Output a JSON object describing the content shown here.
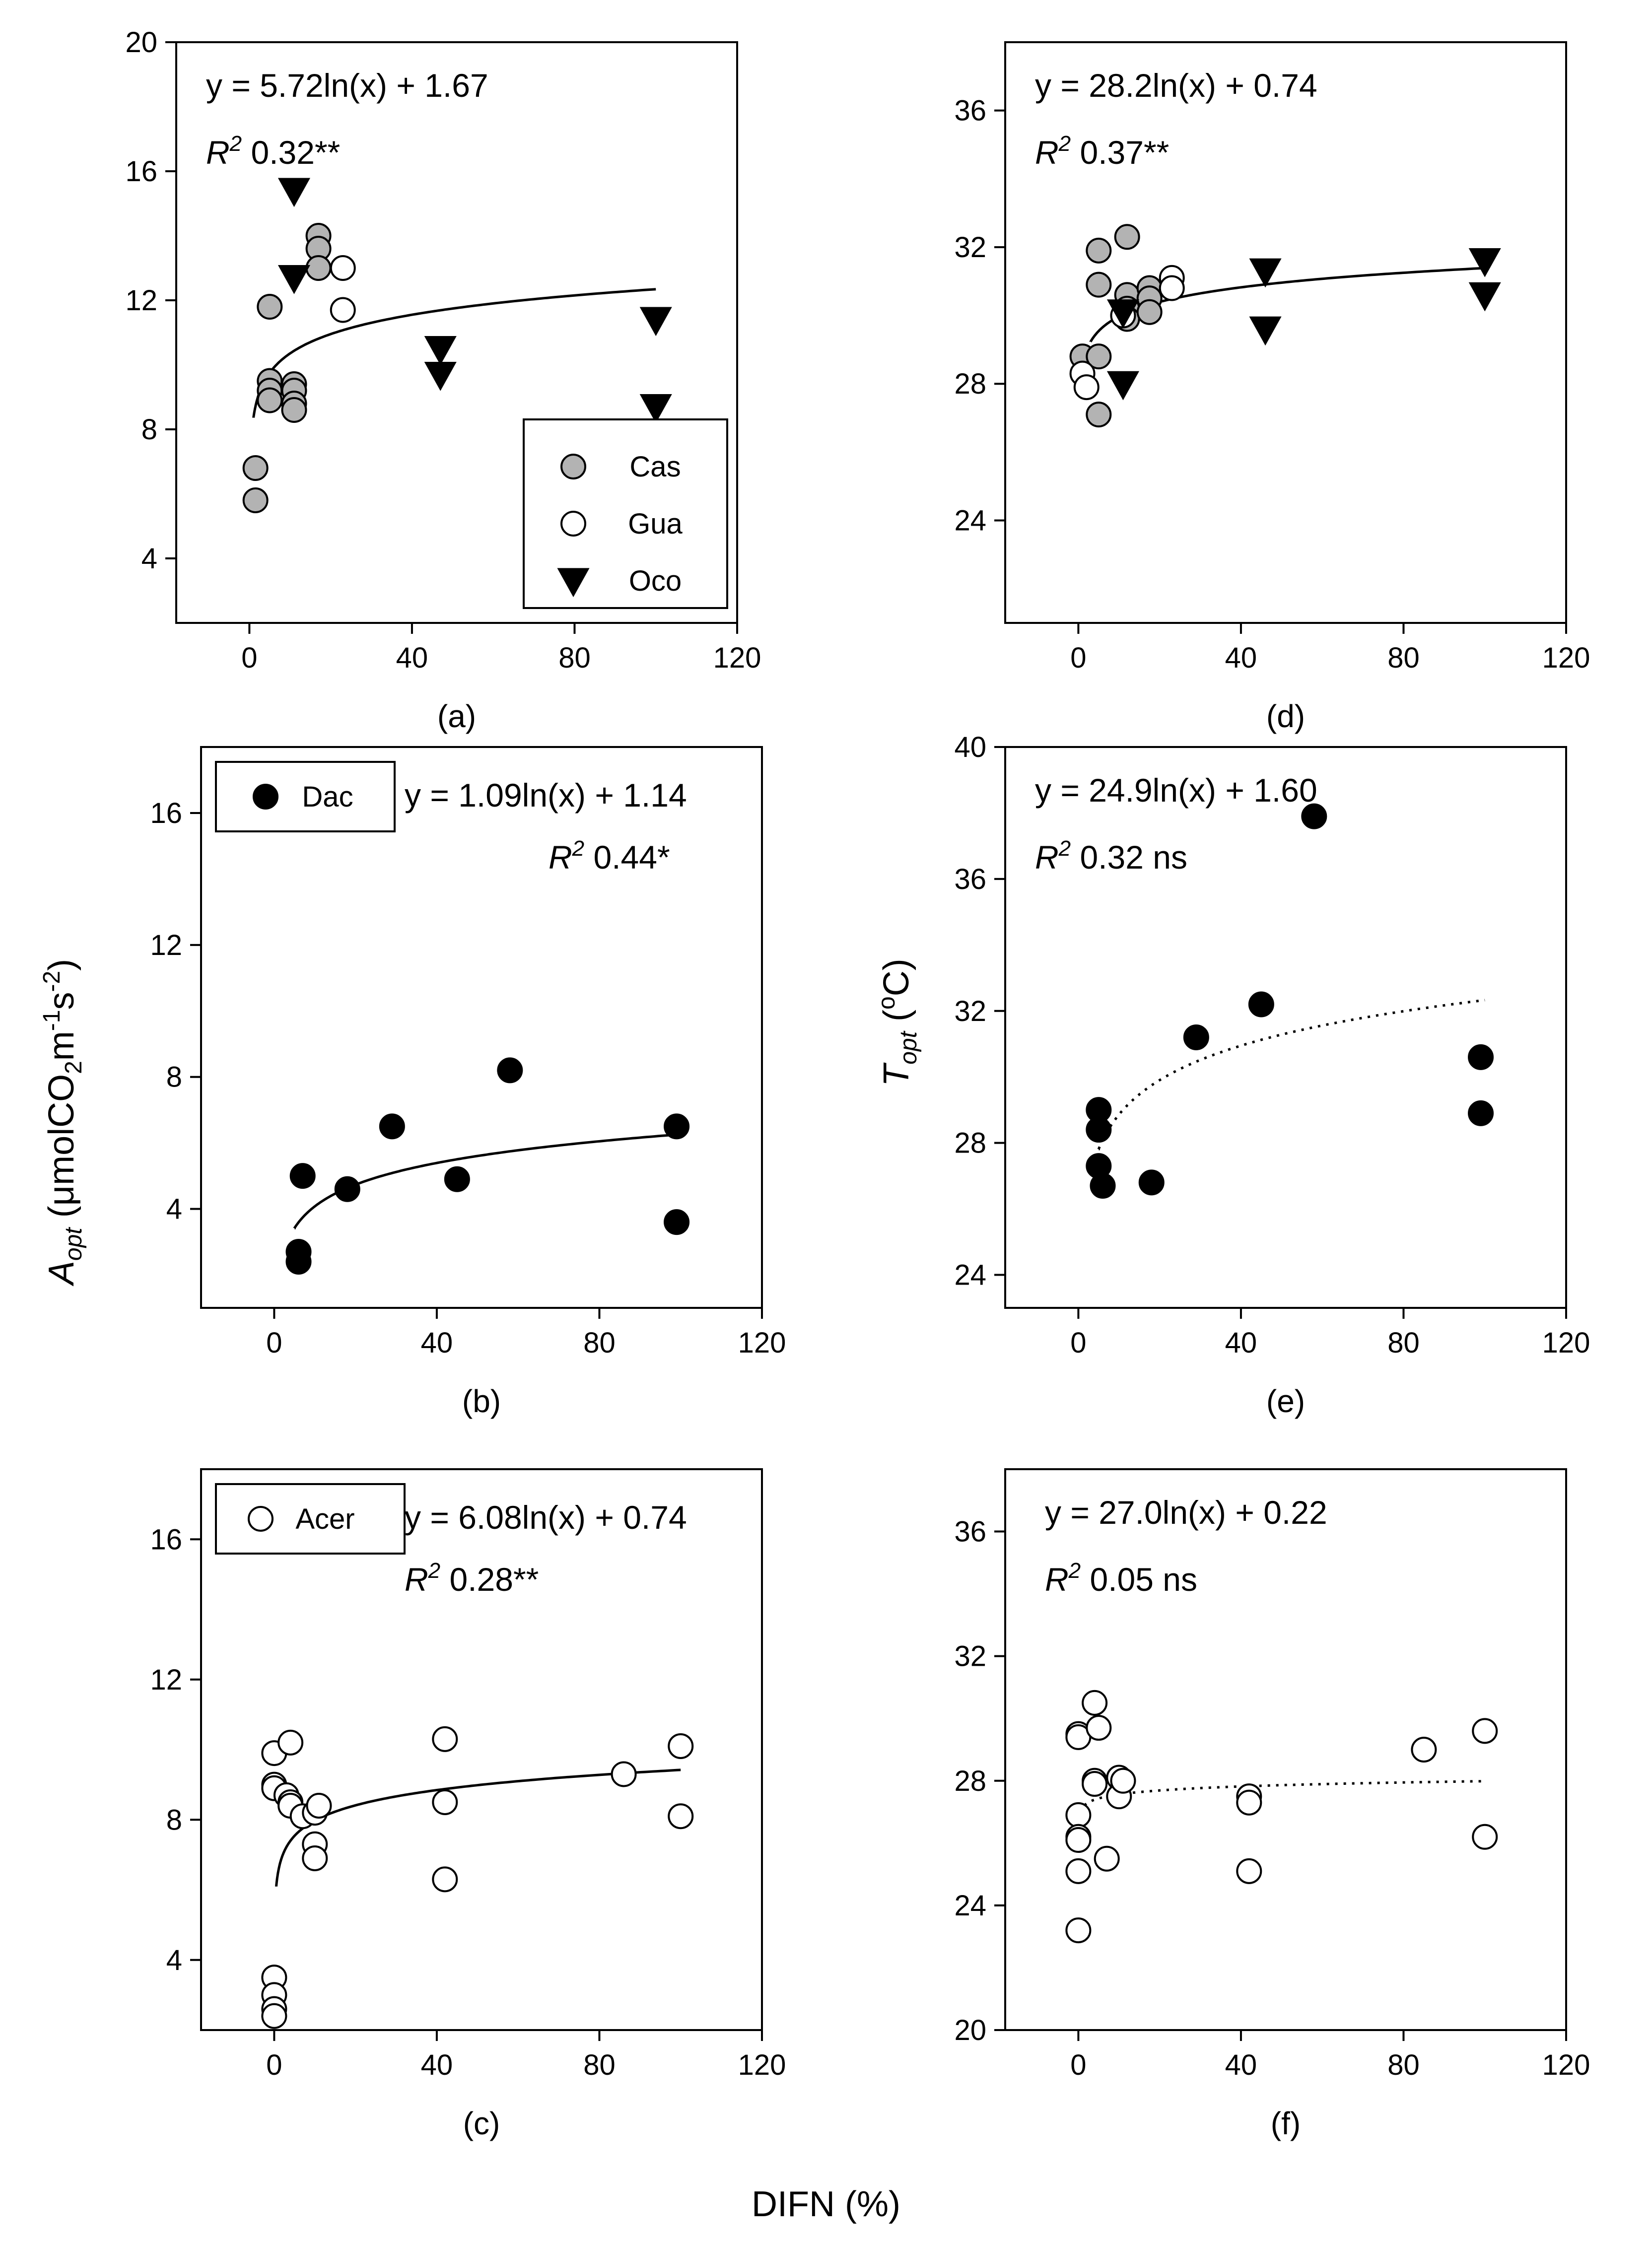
{
  "xlabel": "DIFN (%)",
  "ylabel_left": {
    "main": "A",
    "sub": "opt",
    "rest": " (μmolCO",
    "co2sub": "2",
    "unit1": "m",
    "exp1": "-1",
    "unit2": "s",
    "exp2": "-2",
    "close": ")"
  },
  "ylabel_right": {
    "main": "T",
    "sub": "opt",
    "rest": " (",
    "deg": "o",
    "unit": "C)"
  },
  "colors": {
    "gray_fill": "#b3b3b3",
    "black": "#000000",
    "white": "#ffffff"
  },
  "chart_data": [
    {
      "id": "a",
      "label": "(a)",
      "type": "scatter",
      "xlim": [
        -18,
        120
      ],
      "ylim": [
        2,
        20
      ],
      "xticks": [
        0,
        40,
        80,
        120
      ],
      "yticks": [
        4,
        8,
        12,
        16,
        20
      ],
      "equation": "y = 5.72ln(x) + 1.67",
      "r2_label": "R",
      "r2_sup": "2",
      "r2_value": " 0.32**",
      "fit": {
        "a": 5.72,
        "b": 1.67,
        "x0": 1,
        "x1": 100,
        "style": "solid"
      },
      "legend": {
        "position": "bottom-right",
        "entries": [
          {
            "name": "Cas",
            "marker": "circle-gray"
          },
          {
            "name": "Gua",
            "marker": "circle-open"
          },
          {
            "name": "Oco",
            "marker": "triangle-down"
          }
        ]
      },
      "series": [
        {
          "name": "Cas",
          "marker": "circle-gray",
          "points": [
            [
              1.5,
              6.8
            ],
            [
              1.5,
              5.8
            ],
            [
              5,
              11.8
            ],
            [
              5,
              9.5
            ],
            [
              5,
              9.2
            ],
            [
              5,
              8.9
            ],
            [
              11,
              9.4
            ],
            [
              11,
              9.2
            ],
            [
              11,
              8.8
            ],
            [
              11,
              8.6
            ],
            [
              17,
              14
            ],
            [
              17,
              13.6
            ],
            [
              17,
              13
            ]
          ]
        },
        {
          "name": "Gua",
          "marker": "circle-open",
          "points": [
            [
              23,
              13
            ],
            [
              23,
              11.7
            ]
          ]
        },
        {
          "name": "Oco",
          "marker": "triangle-down",
          "points": [
            [
              11,
              15.4
            ],
            [
              11,
              12.7
            ],
            [
              47,
              10.5
            ],
            [
              47,
              9.7
            ],
            [
              100,
              11.4
            ],
            [
              100,
              8.7
            ]
          ]
        }
      ]
    },
    {
      "id": "d",
      "label": "(d)",
      "type": "scatter",
      "xlim": [
        -18,
        120
      ],
      "ylim": [
        21,
        38
      ],
      "xticks": [
        0,
        40,
        80,
        120
      ],
      "yticks": [
        24,
        28,
        32,
        36
      ],
      "equation": "y = 28.2ln(x) + 0.74",
      "r2_label": "R",
      "r2_sup": "2",
      "r2_value": " 0.37**",
      "fit": {
        "a": 28.2,
        "b": 0.74,
        "x0": 3,
        "x1": 100,
        "style": "solid"
      },
      "series": [
        {
          "name": "Cas",
          "marker": "circle-gray",
          "points": [
            [
              1,
              28.8
            ],
            [
              5,
              31.9
            ],
            [
              5,
              30.9
            ],
            [
              5,
              28.8
            ],
            [
              5,
              27.1
            ],
            [
              12,
              32.3
            ],
            [
              12,
              30.6
            ],
            [
              12,
              30.2
            ],
            [
              12,
              29.9
            ],
            [
              17.5,
              30.8
            ],
            [
              17.5,
              30.5
            ],
            [
              17.5,
              30.1
            ]
          ]
        },
        {
          "name": "Gua",
          "marker": "circle-open",
          "points": [
            [
              1,
              28.3
            ],
            [
              2,
              27.9
            ],
            [
              11,
              30
            ],
            [
              23,
              31.1
            ],
            [
              23,
              30.8
            ]
          ]
        },
        {
          "name": "Oco",
          "marker": "triangle-down",
          "points": [
            [
              11,
              30.1
            ],
            [
              11,
              28
            ],
            [
              46,
              31.3
            ],
            [
              46,
              29.6
            ],
            [
              100,
              31.6
            ],
            [
              100,
              30.6
            ]
          ]
        }
      ]
    },
    {
      "id": "b",
      "label": "(b)",
      "type": "scatter",
      "xlim": [
        -18,
        120
      ],
      "ylim": [
        1,
        18
      ],
      "xticks": [
        0,
        40,
        80,
        120
      ],
      "yticks": [
        4,
        8,
        12,
        16
      ],
      "equation": "y = 1.09ln(x) + 1.14",
      "r2_label": "R",
      "r2_sup": "2",
      "r2_value": " 0.44*",
      "fit": {
        "a": 1.09,
        "b": 1.14,
        "x0": 5,
        "x1": 100,
        "style": "solid"
      },
      "legend": {
        "position": "top-left",
        "entries": [
          {
            "name": "Dac",
            "marker": "circle-black"
          }
        ]
      },
      "series": [
        {
          "name": "Dac",
          "marker": "circle-black",
          "points": [
            [
              6,
              2.7
            ],
            [
              6,
              2.4
            ],
            [
              7,
              5
            ],
            [
              18,
              4.6
            ],
            [
              29,
              6.5
            ],
            [
              45,
              4.9
            ],
            [
              58,
              8.2
            ],
            [
              99,
              6.5
            ],
            [
              99,
              3.6
            ]
          ]
        }
      ]
    },
    {
      "id": "e",
      "label": "(e)",
      "type": "scatter",
      "xlim": [
        -18,
        120
      ],
      "ylim": [
        23,
        40
      ],
      "xticks": [
        0,
        40,
        80,
        120
      ],
      "yticks": [
        24,
        28,
        32,
        36,
        40
      ],
      "equation": "y = 24.9ln(x) + 1.60",
      "r2_label": "R",
      "r2_sup": "2",
      "r2_value": " 0.32 ns",
      "fit": {
        "a": 24.9,
        "b": 1.6,
        "x0": 5,
        "x1": 100,
        "style": "dotted"
      },
      "series": [
        {
          "name": "Dac",
          "marker": "circle-black",
          "points": [
            [
              5,
              29
            ],
            [
              5,
              28.4
            ],
            [
              5,
              27.3
            ],
            [
              6,
              26.7
            ],
            [
              18,
              26.8
            ],
            [
              29,
              31.2
            ],
            [
              45,
              32.2
            ],
            [
              58,
              37.9
            ],
            [
              99,
              30.6
            ],
            [
              99,
              28.9
            ]
          ]
        }
      ]
    },
    {
      "id": "c",
      "label": "(c)",
      "type": "scatter",
      "xlim": [
        -18,
        120
      ],
      "ylim": [
        2,
        18
      ],
      "xticks": [
        0,
        40,
        80,
        120
      ],
      "yticks": [
        4,
        8,
        12,
        16
      ],
      "equation": "y = 6.08ln(x) + 0.74",
      "r2_label": "R",
      "r2_sup": "2",
      "r2_value": " 0.28**",
      "fit": {
        "a": 6.08,
        "b": 0.74,
        "x0": 0.5,
        "x1": 100,
        "style": "solid"
      },
      "legend": {
        "position": "top-left",
        "entries": [
          {
            "name": "Acer",
            "marker": "circle-open"
          }
        ]
      },
      "series": [
        {
          "name": "Acer",
          "marker": "circle-open",
          "points": [
            [
              0,
              9.9
            ],
            [
              0,
              9
            ],
            [
              0,
              8.9
            ],
            [
              0,
              3.5
            ],
            [
              0,
              3
            ],
            [
              0,
              2.6
            ],
            [
              0,
              2.4
            ],
            [
              4,
              10.2
            ],
            [
              3,
              8.7
            ],
            [
              4,
              8.5
            ],
            [
              4,
              8.4
            ],
            [
              7,
              8.1
            ],
            [
              10,
              8.2
            ],
            [
              10,
              7.3
            ],
            [
              10,
              6.9
            ],
            [
              11,
              8.4
            ],
            [
              42,
              10.3
            ],
            [
              42,
              8.5
            ],
            [
              42,
              6.3
            ],
            [
              86,
              9.3
            ],
            [
              100,
              10.1
            ],
            [
              100,
              8.1
            ]
          ]
        }
      ]
    },
    {
      "id": "f",
      "label": "(f)",
      "type": "scatter",
      "xlim": [
        -18,
        120
      ],
      "ylim": [
        20,
        38
      ],
      "xticks": [
        0,
        40,
        80,
        120
      ],
      "yticks": [
        20,
        24,
        28,
        32,
        36
      ],
      "equation": "y = 27.0ln(x) + 0.22",
      "r2_label": "R",
      "r2_sup": "2",
      "r2_value": " 0.05 ns",
      "fit": {
        "a": 27.0,
        "b": 0.22,
        "x0": 1.5,
        "x1": 100,
        "style": "dotted"
      },
      "series": [
        {
          "name": "Acer",
          "marker": "circle-open",
          "points": [
            [
              0,
              29.5
            ],
            [
              0,
              29.4
            ],
            [
              0,
              26.9
            ],
            [
              0,
              26.2
            ],
            [
              0,
              26.1
            ],
            [
              0,
              25.1
            ],
            [
              0,
              23.2
            ],
            [
              4,
              30.5
            ],
            [
              4,
              28
            ],
            [
              4,
              27.9
            ],
            [
              5,
              29.7
            ],
            [
              7,
              25.5
            ],
            [
              10,
              28.1
            ],
            [
              10,
              27.5
            ],
            [
              11,
              28
            ],
            [
              42,
              27.5
            ],
            [
              42,
              27.3
            ],
            [
              42,
              25.1
            ],
            [
              85,
              29
            ],
            [
              100,
              29.6
            ],
            [
              100,
              26.2
            ]
          ]
        }
      ]
    }
  ]
}
